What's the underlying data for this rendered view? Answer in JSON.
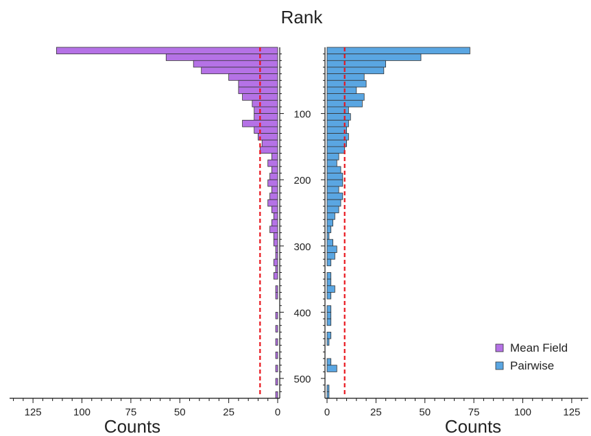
{
  "chart_data": {
    "type": "bar",
    "orientation": "horizontal-mirrored",
    "title": "Rank",
    "rank_axis": {
      "range": [
        0,
        530
      ],
      "ticks": [
        100,
        200,
        300,
        400,
        500
      ],
      "tick_labels": [
        "100",
        "200",
        "300",
        "400",
        "500"
      ]
    },
    "bin_width": 10,
    "bin_starts": [
      0,
      10,
      20,
      30,
      40,
      50,
      60,
      70,
      80,
      90,
      100,
      110,
      120,
      130,
      140,
      150,
      160,
      170,
      180,
      190,
      200,
      210,
      220,
      230,
      240,
      250,
      260,
      270,
      280,
      290,
      300,
      310,
      320,
      330,
      340,
      350,
      360,
      370,
      380,
      390,
      400,
      410,
      420,
      430,
      440,
      450,
      460,
      470,
      480,
      490,
      500,
      510,
      520
    ],
    "left": {
      "xlabel": "Counts",
      "xlim": [
        0,
        135
      ],
      "ticks": [
        125,
        100,
        75,
        50,
        25,
        0
      ],
      "tick_labels": [
        "125",
        "100",
        "75",
        "50",
        "25",
        "0"
      ],
      "mean_line": 9
    },
    "right": {
      "xlabel": "Counts",
      "xlim": [
        0,
        135
      ],
      "ticks": [
        0,
        25,
        50,
        75,
        100,
        125
      ],
      "tick_labels": [
        "0",
        "25",
        "50",
        "75",
        "100",
        "125"
      ],
      "mean_line": 9
    },
    "series": [
      {
        "name": "Mean Field",
        "side": "left",
        "color": "#b572e6",
        "values": [
          113,
          57,
          43,
          39,
          25,
          20,
          20,
          18,
          13,
          12,
          12,
          18,
          12,
          10,
          8,
          9,
          3,
          5,
          3,
          4,
          5,
          3,
          4,
          5,
          3,
          2,
          3,
          4,
          2,
          2,
          1,
          1,
          2,
          1,
          2,
          0,
          1,
          1,
          0,
          0,
          1,
          0,
          1,
          0,
          1,
          0,
          1,
          0,
          1,
          0,
          1,
          0,
          1
        ]
      },
      {
        "name": "Pairwise",
        "side": "right",
        "color": "#5aa6e2",
        "values": [
          73,
          48,
          30,
          29,
          19,
          20,
          15,
          19,
          18,
          11,
          12,
          11,
          10,
          11,
          10,
          9,
          6,
          5,
          7,
          8,
          8,
          6,
          8,
          7,
          6,
          4,
          3,
          2,
          1,
          3,
          5,
          4,
          2,
          0,
          2,
          2,
          4,
          2,
          0,
          2,
          2,
          2,
          0,
          2,
          1,
          0,
          0,
          2,
          5,
          0,
          0,
          1,
          1
        ]
      }
    ],
    "legend_placement": "bottom-right",
    "colors": {
      "mean_line": "#e8141b",
      "bar_stroke": "#333333"
    }
  }
}
